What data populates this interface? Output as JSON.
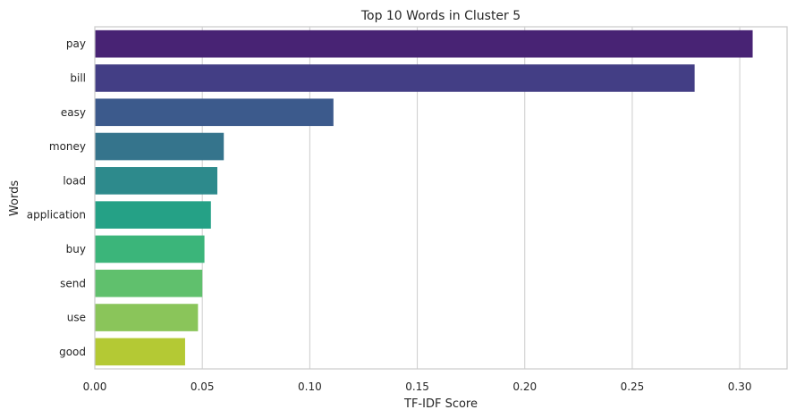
{
  "chart_data": {
    "type": "bar",
    "orientation": "horizontal",
    "title": "Top 10 Words in Cluster 5",
    "xlabel": "TF-IDF Score",
    "ylabel": "Words",
    "xlim": [
      0,
      0.322
    ],
    "xticks": [
      0.0,
      0.05,
      0.1,
      0.15,
      0.2,
      0.25,
      0.3
    ],
    "xtick_labels": [
      "0.00",
      "0.05",
      "0.10",
      "0.15",
      "0.20",
      "0.25",
      "0.30"
    ],
    "grid": "vertical",
    "categories": [
      "pay",
      "bill",
      "easy",
      "money",
      "load",
      "application",
      "buy",
      "send",
      "use",
      "good"
    ],
    "values": [
      0.306,
      0.279,
      0.111,
      0.06,
      0.057,
      0.054,
      0.051,
      0.05,
      0.048,
      0.042
    ],
    "colors": [
      "#482374",
      "#433e85",
      "#3c5a8c",
      "#35748c",
      "#2d8a8c",
      "#25a186",
      "#3bb57a",
      "#60c06d",
      "#8ac55a",
      "#b4c934"
    ]
  }
}
